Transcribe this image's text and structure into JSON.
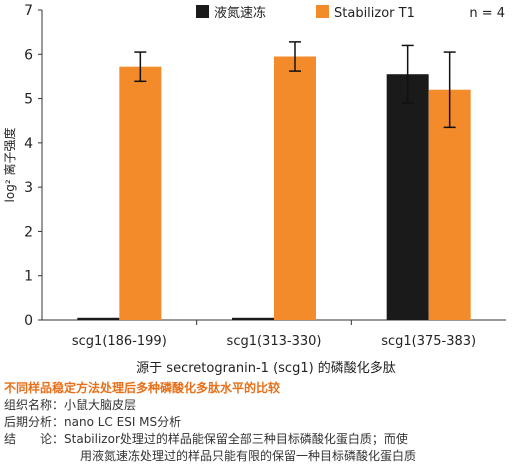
{
  "chart_data": {
    "type": "bar",
    "categories": [
      "scg1(186-199)",
      "scg1(313-330)",
      "scg1(375-383)"
    ],
    "series": [
      {
        "name": "液氮速冻",
        "color": "#1a1a1a",
        "values": [
          0.05,
          0.05,
          5.55
        ],
        "errors": [
          0,
          0,
          0.65
        ]
      },
      {
        "name": "Stabilizor T1",
        "color": "#f38b2a",
        "values": [
          5.72,
          5.95,
          5.2
        ],
        "errors": [
          0.33,
          0.33,
          0.85
        ]
      }
    ],
    "legend_note": "n = 4",
    "ylabel": "log² 离子强度",
    "xlabel": "源于 secretogranin-1 (scg1) 的磷酸化多肽",
    "ylim": [
      0,
      7
    ],
    "yticks": [
      "0",
      "1",
      "2",
      "3",
      "4",
      "5",
      "6",
      "7"
    ],
    "legend_position": "top-right",
    "grid": false
  },
  "caption": {
    "title": "不同样品稳定方法处理后多种磷酸化多肽水平的比较",
    "tissue_label": "组织名称：",
    "tissue_value": "小鼠大脑皮层",
    "analysis_label": "后期分析：",
    "analysis_value": "nano LC ESI MS分析",
    "conclusion_label": "结　　论：",
    "conclusion_line1": "Stabilizor处理过的样品能保留全部三种目标磷酸化蛋白质；而使",
    "conclusion_line2": "用液氮速冻处理过的样品只能有限的保留一种目标磷酸化蛋白质"
  }
}
